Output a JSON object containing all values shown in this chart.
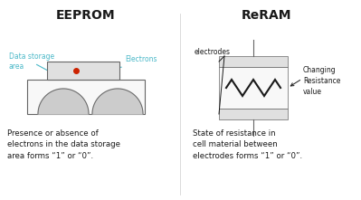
{
  "bg_color": "#ffffff",
  "title_eeprom": "EEPROM",
  "title_reram": "ReRAM",
  "label_data_storage": "Data storage\narea",
  "label_electrons": "Electrons",
  "label_electrodes": "electrodes",
  "label_changing": "Changing\nResistance\nvalue",
  "text_eeprom": "Presence or absence of\nelectrons in the data storage\narea forms “1” or “0”.",
  "text_reram": "State of resistance in\ncell material between\nelectrodes forms “1” or “0”.",
  "color_label_cyan": "#4ab8c8",
  "color_red": "#cc2200",
  "color_dark": "#1a1a1a",
  "color_outline": "#666666",
  "color_gray_light": "#e0e0e0",
  "color_gray_med": "#cccccc",
  "color_white": "#f8f8f8"
}
